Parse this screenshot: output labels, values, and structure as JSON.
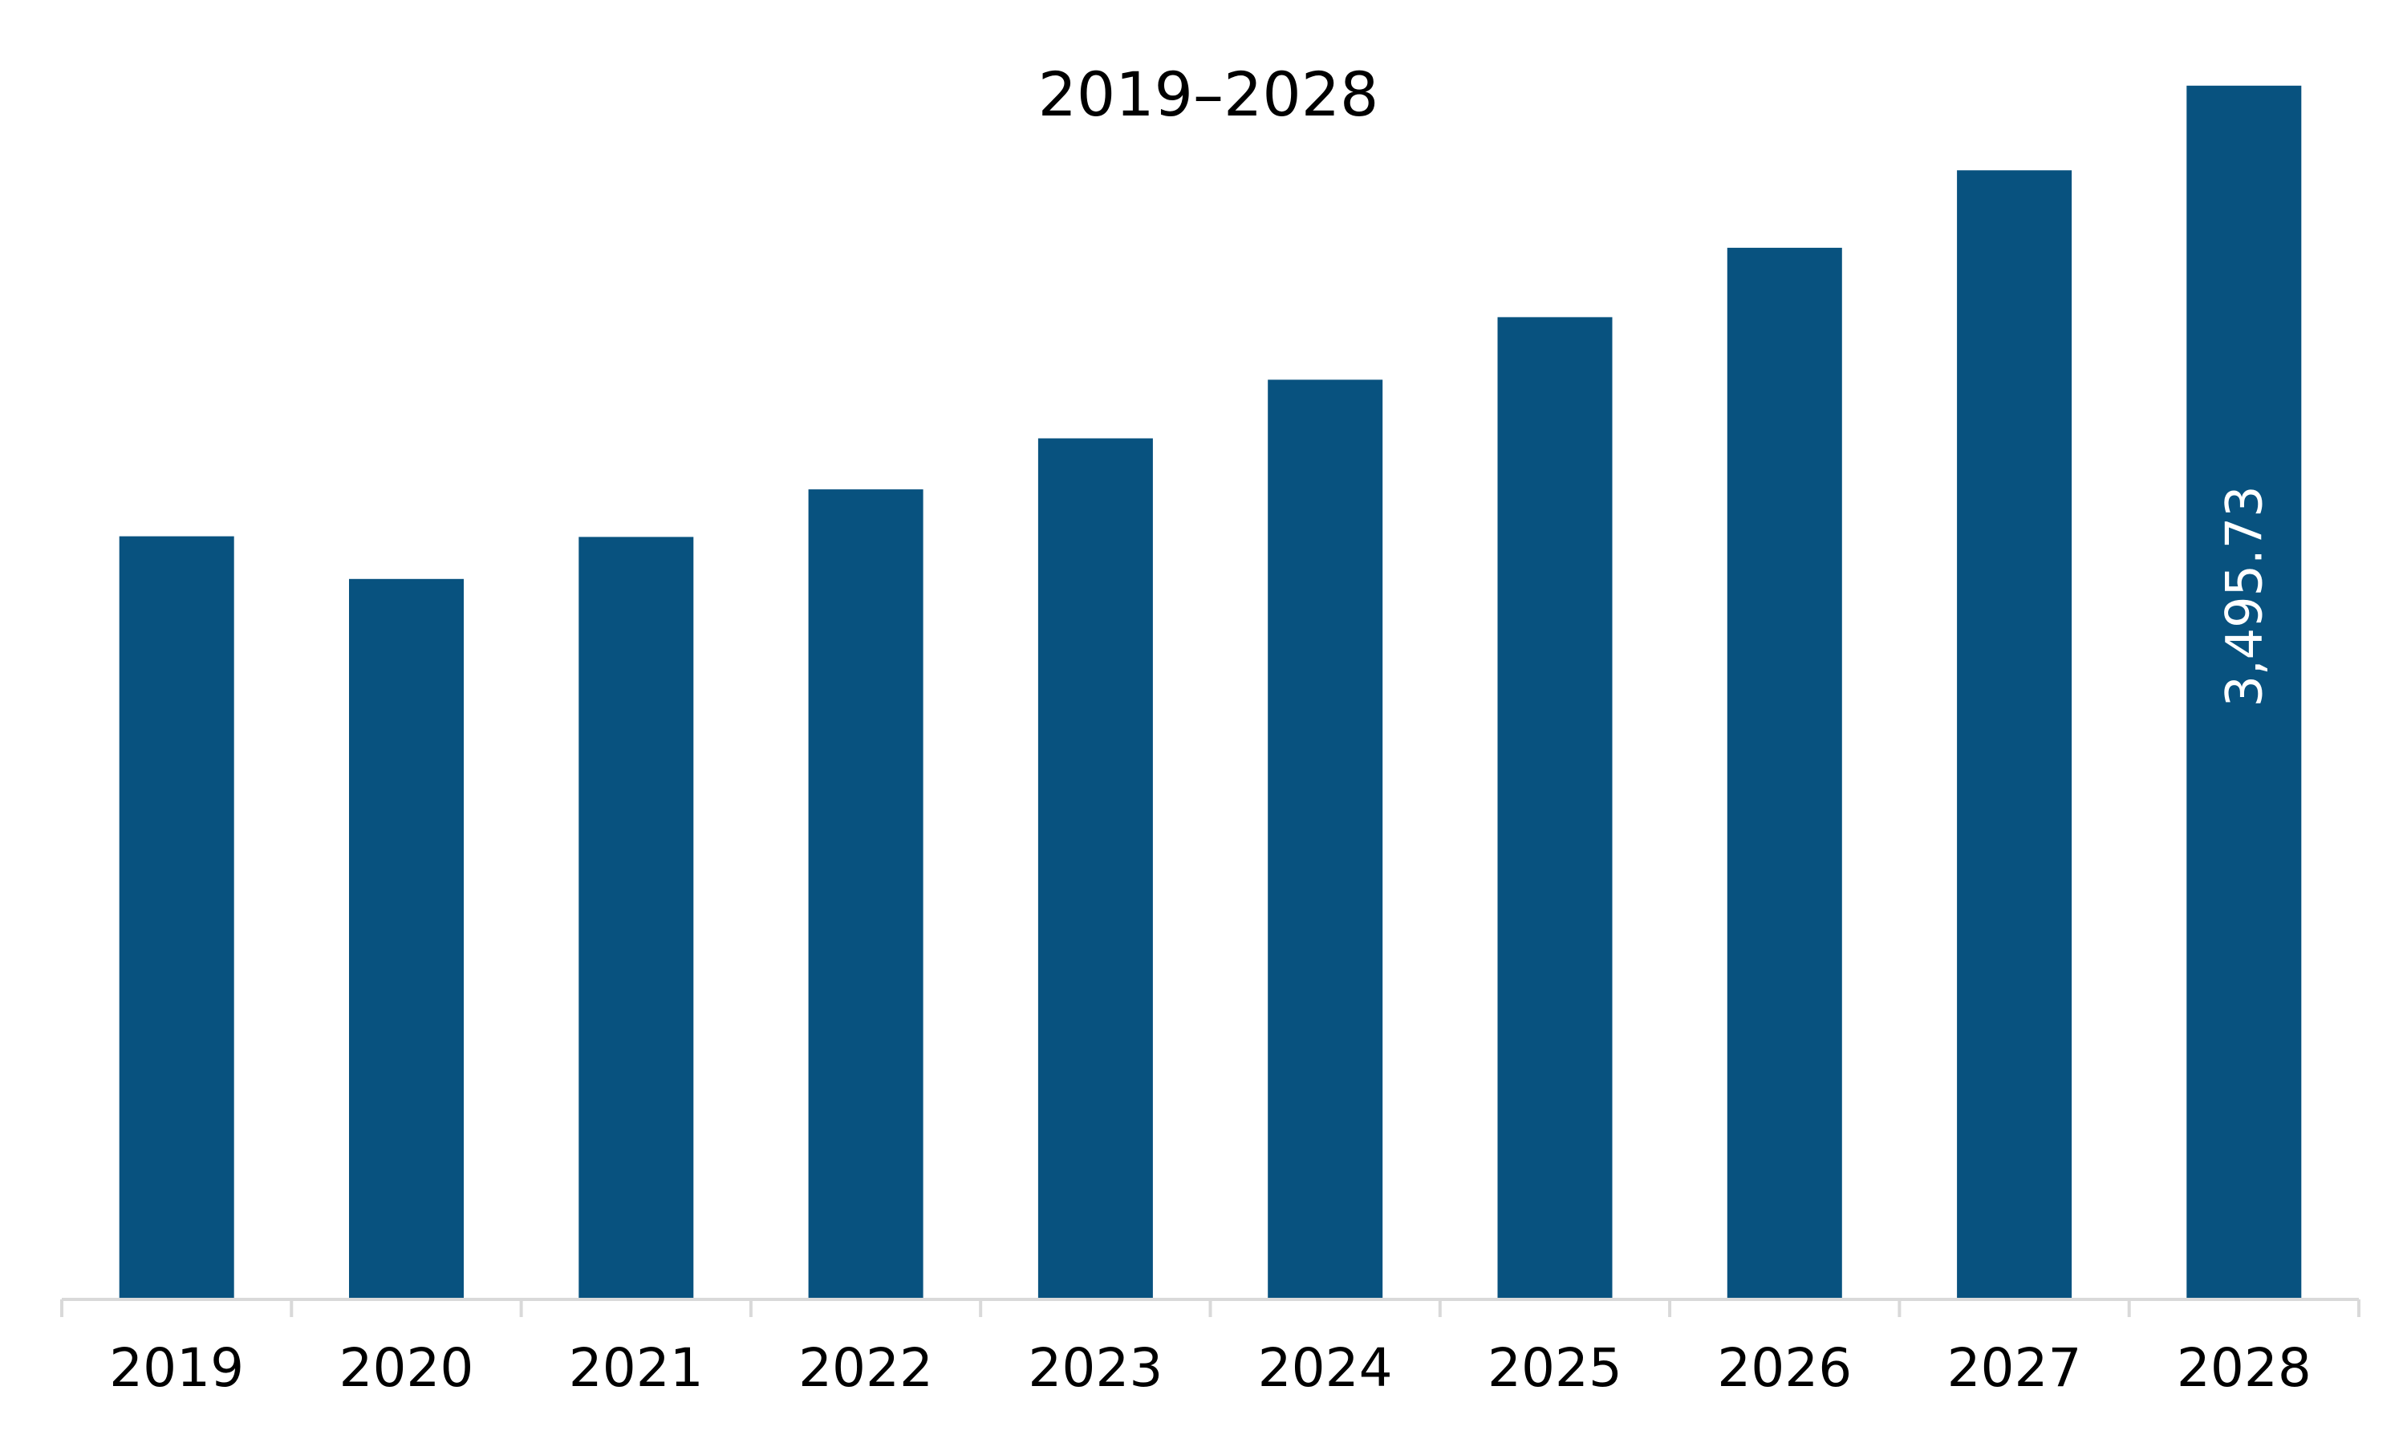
{
  "chart_data": {
    "type": "bar",
    "title": "2019–2028",
    "xlabel": "",
    "ylabel": "",
    "categories": [
      "2019",
      "2020",
      "2021",
      "2022",
      "2023",
      "2024",
      "2025",
      "2026",
      "2027",
      "2028"
    ],
    "values": [
      2198,
      2075,
      2196,
      2333,
      2480,
      2649,
      2829,
      3029,
      3252,
      3495.73
    ],
    "data_labels": [
      null,
      null,
      null,
      null,
      null,
      null,
      null,
      null,
      null,
      "3,495.73"
    ],
    "ylim": [
      0,
      3500
    ],
    "grid": false,
    "legend": "none",
    "colors": {
      "bar": "#08527F",
      "axis": "#D9D9D9",
      "text": "#000000",
      "label_text": "#FFFFFF"
    }
  }
}
